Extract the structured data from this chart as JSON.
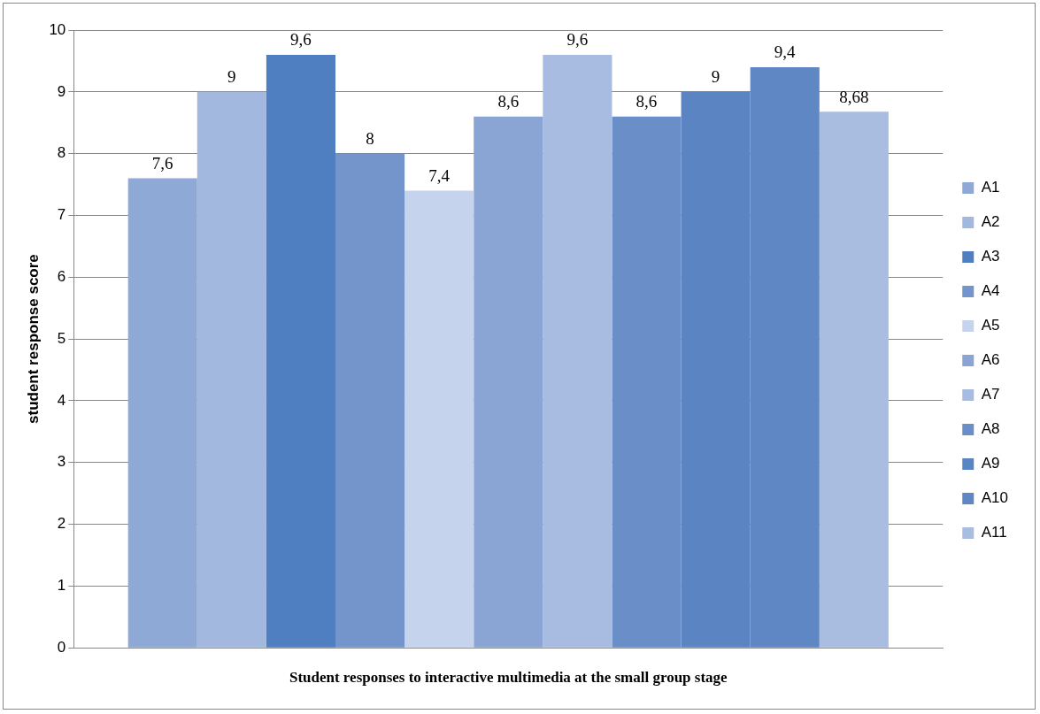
{
  "chart_data": {
    "type": "bar",
    "xlabel": "Student responses to interactive multimedia at the small group stage",
    "ylabel": "student response score",
    "categories": [
      null
    ],
    "series": [
      {
        "name": "A1",
        "color": "#8fa9d6",
        "values": [
          7.6
        ],
        "value_labels": [
          "7,6"
        ]
      },
      {
        "name": "A2",
        "color": "#a3b8de",
        "values": [
          9
        ],
        "value_labels": [
          "9"
        ]
      },
      {
        "name": "A3",
        "color": "#4f7fc0",
        "values": [
          9.6
        ],
        "value_labels": [
          "9,6"
        ]
      },
      {
        "name": "A4",
        "color": "#7395cc",
        "values": [
          8
        ],
        "value_labels": [
          "8"
        ]
      },
      {
        "name": "A5",
        "color": "#c5d3ec",
        "values": [
          7.4
        ],
        "value_labels": [
          "7,4"
        ]
      },
      {
        "name": "A6",
        "color": "#8aa4d3",
        "values": [
          8.6
        ],
        "value_labels": [
          "8,6"
        ]
      },
      {
        "name": "A7",
        "color": "#a7bce0",
        "values": [
          9.6
        ],
        "value_labels": [
          "9,6"
        ]
      },
      {
        "name": "A8",
        "color": "#6a8ec8",
        "values": [
          8.6
        ],
        "value_labels": [
          "8,6"
        ]
      },
      {
        "name": "A9",
        "color": "#5a85c2",
        "values": [
          9
        ],
        "value_labels": [
          "9"
        ]
      },
      {
        "name": "A10",
        "color": "#5e87c4",
        "values": [
          9.4
        ],
        "value_labels": [
          "9,4"
        ]
      },
      {
        "name": "A11",
        "color": "#a9bde0",
        "values": [
          8.68
        ],
        "value_labels": [
          "8,68"
        ]
      }
    ],
    "ylim": [
      0,
      10
    ],
    "yticks": [
      0,
      1,
      2,
      3,
      4,
      5,
      6,
      7,
      8,
      9,
      10
    ],
    "grid": "y",
    "legend": "right"
  }
}
